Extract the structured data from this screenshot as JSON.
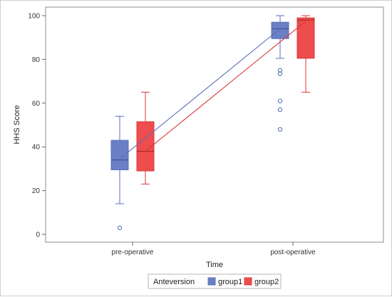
{
  "chart_data": {
    "type": "box",
    "xlabel": "Time",
    "ylabel": "HHS Score",
    "categories": [
      "pre-operative",
      "post-operative"
    ],
    "ylim": [
      0,
      100
    ],
    "yticks": [
      0,
      20,
      40,
      60,
      80,
      100
    ],
    "legend": {
      "title": "Anteversion",
      "placement": "bottom"
    },
    "series": [
      {
        "name": "group1",
        "color": "#5a6fb8",
        "fill": "#6b7fc4",
        "boxes": [
          {
            "category": "pre-operative",
            "min": 14,
            "q1": 29.5,
            "median": 34,
            "mean": 34.5,
            "q3": 43,
            "max": 54,
            "outliers": [
              3
            ]
          },
          {
            "category": "post-operative",
            "min": 80.5,
            "q1": 89.5,
            "median": 94,
            "mean": 94,
            "q3": 97,
            "max": 100,
            "outliers": [
              75,
              73.5,
              61,
              57,
              48
            ]
          }
        ]
      },
      {
        "name": "group2",
        "color": "#d93a3a",
        "fill": "#ee4d4d",
        "boxes": [
          {
            "category": "pre-operative",
            "min": 23,
            "q1": 29,
            "median": 38,
            "mean": 38,
            "q3": 51.5,
            "max": 65,
            "outliers": []
          },
          {
            "category": "post-operative",
            "min": 65,
            "q1": 80.5,
            "median": 98,
            "mean": 97.5,
            "q3": 99,
            "max": 100,
            "outliers": []
          }
        ]
      }
    ]
  }
}
